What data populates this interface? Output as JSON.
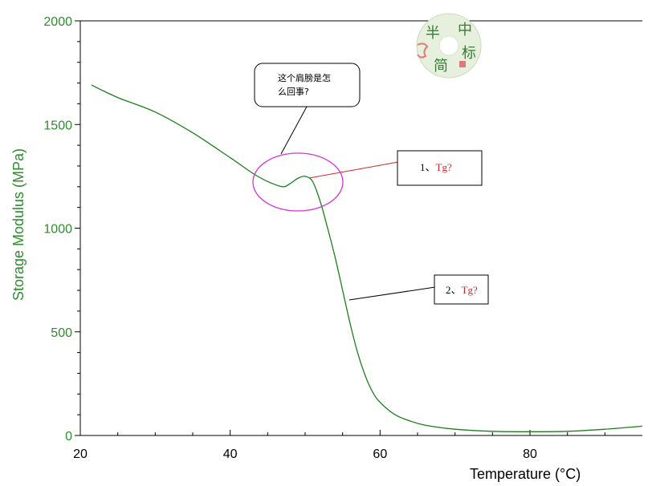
{
  "colors": {
    "curve": "#1e7d1e",
    "axis_text": "#2e8b2e",
    "ellipse": "#d633d6",
    "red_line": "#d42a2a",
    "tg_text": "#d42a2a"
  },
  "chart_data": {
    "type": "line",
    "title": "",
    "xlabel": "Temperature (°C)",
    "ylabel": "Storage Modulus (MPa)",
    "xlim": [
      20,
      95
    ],
    "ylim": [
      0,
      2000
    ],
    "x_ticks": [
      20,
      40,
      60,
      80
    ],
    "y_ticks": [
      0,
      500,
      1000,
      1500,
      2000
    ],
    "grid": false,
    "series": [
      {
        "x": [
          21.5,
          25,
          30,
          35,
          40,
          43,
          45,
          47,
          48,
          49,
          50,
          51,
          52,
          53,
          54,
          55,
          56,
          57,
          58,
          59,
          60,
          62,
          64,
          66,
          70,
          75,
          80,
          85,
          90,
          95
        ],
        "y": [
          1690,
          1630,
          1560,
          1460,
          1340,
          1265,
          1225,
          1200,
          1215,
          1240,
          1250,
          1225,
          1130,
          1000,
          860,
          700,
          540,
          400,
          290,
          210,
          160,
          100,
          70,
          50,
          30,
          20,
          18,
          20,
          30,
          45
        ]
      }
    ],
    "annotations": [
      {
        "text_lines": [
          "这个肩膀是怎",
          "么回事?"
        ]
      },
      {
        "prefix": "1、",
        "label": "Tg?"
      },
      {
        "prefix": "2、",
        "label": "Tg?"
      }
    ]
  },
  "watermark": {
    "chars": [
      "半",
      "中",
      "简",
      "标"
    ]
  }
}
